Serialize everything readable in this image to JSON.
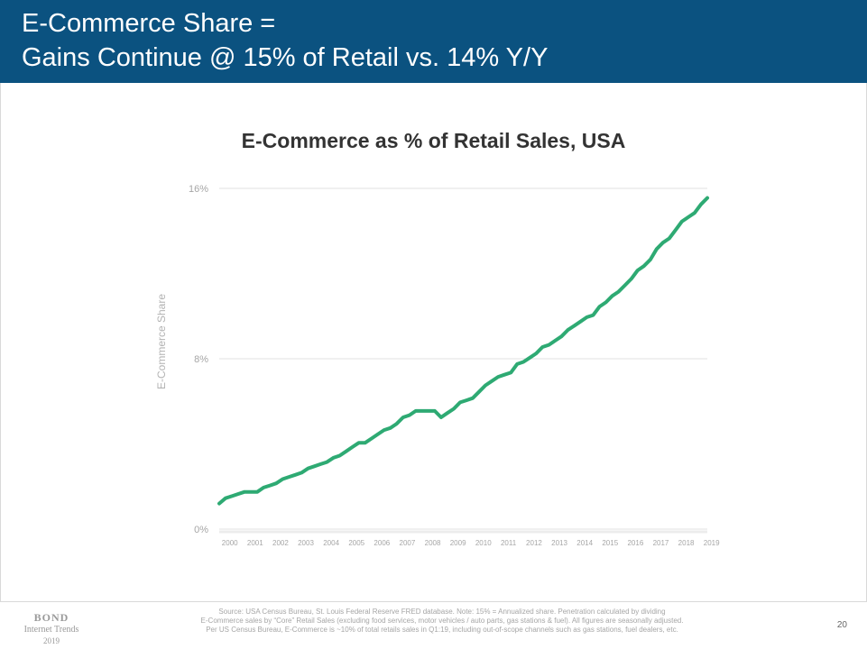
{
  "slide": {
    "title_line1": "E-Commerce Share =",
    "title_line2": "Gains Continue @ 15% of Retail vs. 14% Y/Y",
    "page_number": "20"
  },
  "footer": {
    "logo_line1": "BOND",
    "logo_line2": "Internet Trends",
    "logo_line3": "2019",
    "source_line1": "Source: USA Census Bureau, St. Louis Federal Reserve FRED database.  Note: 15% = Annualized share.  Penetration calculated by dividing",
    "source_line2": "E-Commerce sales by “Core” Retail Sales (excluding food services, motor vehicles / auto parts, gas stations & fuel). All figures are seasonally adjusted.",
    "source_line3": "Per US Census Bureau, E-Commerce is ~10% of total retails sales in Q1:19, including out-of-scope channels such as gas stations, fuel dealers, etc."
  },
  "colors": {
    "header_bg": "#0b5280",
    "line": "#2eaa73",
    "grid": "#e0e0e0"
  },
  "chart_data": {
    "type": "line",
    "title": "E-Commerce as % of Retail Sales, USA",
    "xlabel": "",
    "ylabel": "E-Commerce Share",
    "ylim": [
      0,
      16
    ],
    "yticks": [
      0,
      8,
      16
    ],
    "ytick_labels": [
      "0%",
      "8%",
      "16%"
    ],
    "xlim": [
      2000,
      2019.25
    ],
    "xtick_labels": [
      "2000",
      "2001",
      "2002",
      "2003",
      "2004",
      "2005",
      "2006",
      "2007",
      "2008",
      "2009",
      "2010",
      "2011",
      "2012",
      "2013",
      "2014",
      "2015",
      "2016",
      "2017",
      "2018",
      "2019"
    ],
    "grid": true,
    "series": [
      {
        "x": [
          2000.0,
          2000.25,
          2000.5,
          2000.75,
          2001.0,
          2001.25,
          2001.5,
          2001.75,
          2002.0,
          2002.25,
          2002.5,
          2002.75,
          2003.0,
          2003.25,
          2003.5,
          2003.75,
          2004.0,
          2004.25,
          2004.5,
          2004.75,
          2005.0,
          2005.25,
          2005.5,
          2005.75,
          2006.0,
          2006.25,
          2006.5,
          2006.75,
          2007.0,
          2007.25,
          2007.5,
          2007.75,
          2008.0,
          2008.25,
          2008.5,
          2008.75,
          2009.0,
          2009.25,
          2009.5,
          2009.75,
          2010.0,
          2010.25,
          2010.5,
          2010.75,
          2011.0,
          2011.25,
          2011.5,
          2011.75,
          2012.0,
          2012.25,
          2012.5,
          2012.75,
          2013.0,
          2013.25,
          2013.5,
          2013.75,
          2014.0,
          2014.25,
          2014.5,
          2014.75,
          2015.0,
          2015.25,
          2015.5,
          2015.75,
          2016.0,
          2016.25,
          2016.5,
          2016.75,
          2017.0,
          2017.25,
          2017.5,
          2017.75,
          2018.0,
          2018.25,
          2018.5,
          2018.75,
          2019.0,
          2019.25
        ],
        "y": [
          1.2,
          1.45,
          1.55,
          1.65,
          1.75,
          1.75,
          1.75,
          1.95,
          2.05,
          2.15,
          2.35,
          2.45,
          2.55,
          2.65,
          2.85,
          2.95,
          3.05,
          3.15,
          3.35,
          3.45,
          3.65,
          3.85,
          4.05,
          4.05,
          4.25,
          4.45,
          4.65,
          4.75,
          4.95,
          5.25,
          5.35,
          5.55,
          5.55,
          5.55,
          5.55,
          5.25,
          5.45,
          5.65,
          5.95,
          6.05,
          6.15,
          6.45,
          6.75,
          6.95,
          7.15,
          7.25,
          7.35,
          7.75,
          7.85,
          8.05,
          8.25,
          8.55,
          8.65,
          8.85,
          9.05,
          9.35,
          9.55,
          9.75,
          9.95,
          10.05,
          10.45,
          10.65,
          10.95,
          11.15,
          11.45,
          11.75,
          12.15,
          12.35,
          12.65,
          13.15,
          13.45,
          13.65,
          14.05,
          14.45,
          14.65,
          14.85,
          15.25,
          15.55
        ]
      }
    ]
  }
}
